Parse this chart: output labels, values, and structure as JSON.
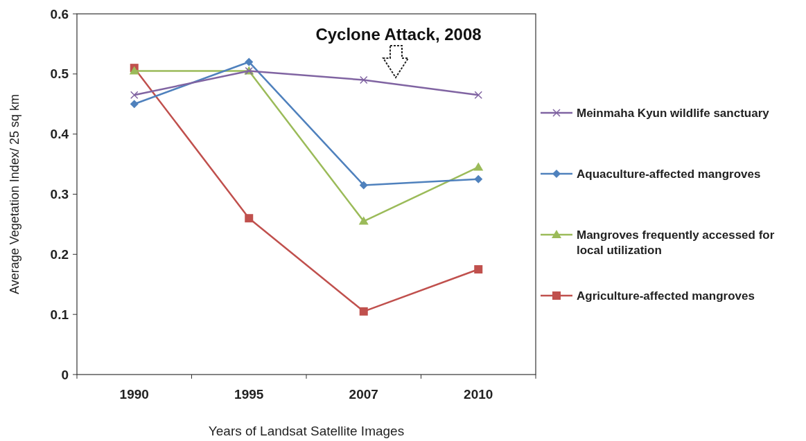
{
  "chart_data": {
    "type": "line",
    "xlabel": "Years of Landsat Satellite Images",
    "ylabel": "Average Vegetation Index/ 25 sq km",
    "categories": [
      "1990",
      "1995",
      "2007",
      "2010"
    ],
    "ylim": [
      0,
      0.6
    ],
    "yticks": [
      0,
      0.1,
      0.2,
      0.3,
      0.4,
      0.5,
      0.6
    ],
    "legend": "right",
    "annotations": [
      "Cyclone Attack, 2008"
    ],
    "series": [
      {
        "name": "Meinmaha Kyun wildlife sanctuary",
        "color": "#8064a2",
        "marker": "cross",
        "values": [
          0.465,
          0.505,
          0.49,
          0.465
        ]
      },
      {
        "name": "Aquaculture-affected mangroves",
        "color": "#4f81bd",
        "marker": "diamond",
        "values": [
          0.45,
          0.52,
          0.315,
          0.325
        ]
      },
      {
        "name": "Mangroves frequently accessed for local utilization",
        "color": "#9bbb59",
        "marker": "triangle",
        "values": [
          0.505,
          0.505,
          0.255,
          0.345
        ]
      },
      {
        "name": "Agriculture-affected mangroves",
        "color": "#c0504d",
        "marker": "square",
        "values": [
          0.51,
          0.26,
          0.105,
          0.175
        ]
      }
    ]
  }
}
